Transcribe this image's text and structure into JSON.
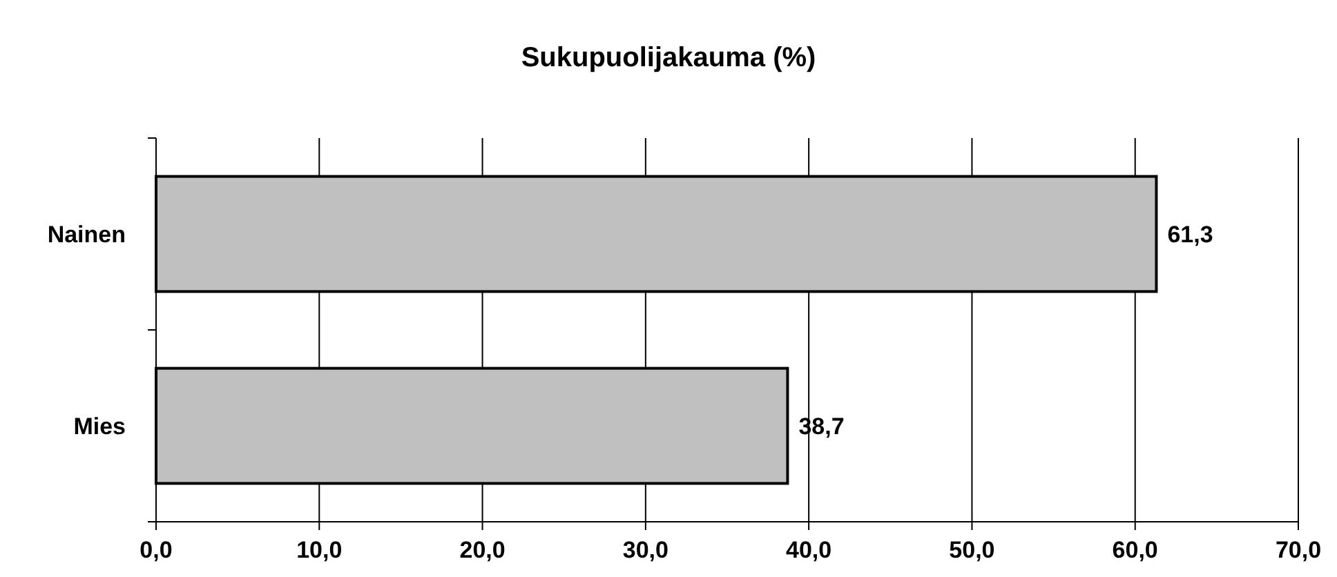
{
  "chart_data": {
    "type": "bar",
    "title": "Sukupuolijakauma (%)",
    "orientation": "horizontal",
    "categories": [
      "Nainen",
      "Mies"
    ],
    "values": [
      61.3,
      38.7
    ],
    "value_labels": [
      "61,3",
      "38,7"
    ],
    "color": "#c0c0c0",
    "xlim": [
      0,
      70
    ],
    "xticks": [
      {
        "value": 0,
        "label": "0,0"
      },
      {
        "value": 10,
        "label": "10,0"
      },
      {
        "value": 20,
        "label": "20,0"
      },
      {
        "value": 30,
        "label": "30,0"
      },
      {
        "value": 40,
        "label": "40,0"
      },
      {
        "value": 50,
        "label": "50,0"
      },
      {
        "value": 60,
        "label": "60,0"
      },
      {
        "value": 70,
        "label": "70,0"
      }
    ],
    "grid": "x"
  }
}
